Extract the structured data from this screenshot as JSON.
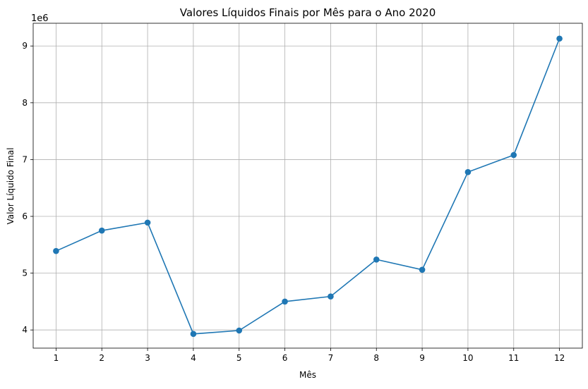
{
  "chart_data": {
    "type": "line",
    "title": "Valores Líquidos Finais por Mês para o Ano 2020",
    "xlabel": "Mês",
    "ylabel": "Valor Líquido Final",
    "y_offset_label": "1e6",
    "x": [
      1,
      2,
      3,
      4,
      5,
      6,
      7,
      8,
      9,
      10,
      11,
      12
    ],
    "x_tick_labels": [
      "1",
      "2",
      "3",
      "4",
      "5",
      "6",
      "7",
      "8",
      "9",
      "10",
      "11",
      "12"
    ],
    "series": [
      {
        "values": [
          5390000,
          5750000,
          5890000,
          3930000,
          3990000,
          4500000,
          4590000,
          5240000,
          5060000,
          6780000,
          7080000,
          9130000
        ]
      }
    ],
    "y_ticks": [
      4,
      5,
      6,
      7,
      8,
      9
    ],
    "y_tick_labels": [
      "4",
      "5",
      "6",
      "7",
      "8",
      "9"
    ],
    "xlim": [
      0.5,
      12.5
    ],
    "ylim": [
      3680000,
      9400000
    ],
    "grid": true,
    "line_color": "#1f77b4",
    "marker": "circle"
  }
}
